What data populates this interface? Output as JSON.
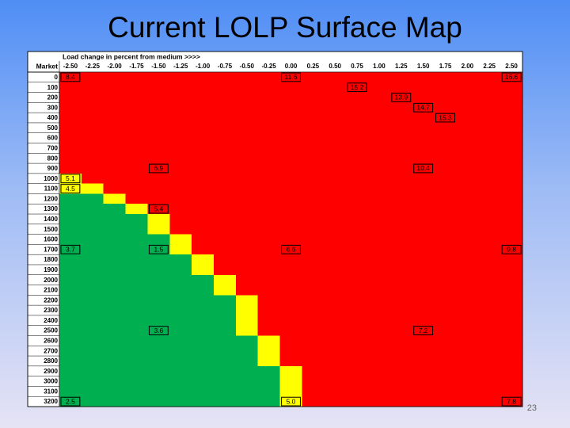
{
  "header": {
    "title": "Current LOLP Surface Map"
  },
  "footer": {
    "page": "23"
  },
  "table": {
    "caption": "Load change in percent from medium >>>>",
    "corner": "Market",
    "colors": {
      "red": "#ff0000",
      "yellow": "#ffff00",
      "green": "#00b050"
    },
    "columns": [
      "-2.50",
      "-2.25",
      "-2.00",
      "-1.75",
      "-1.50",
      "-1.25",
      "-1.00",
      "-0.75",
      "-0.50",
      "-0.25",
      "0.00",
      "0.25",
      "0.50",
      "0.75",
      "1.00",
      "1.25",
      "1.50",
      "1.75",
      "2.00",
      "2.25",
      "2.50"
    ],
    "rows": [
      {
        "label": "0",
        "yellow": [],
        "cells": [
          "8.4",
          null,
          null,
          null,
          null,
          null,
          null,
          null,
          null,
          null,
          "11.6",
          null,
          null,
          null,
          null,
          null,
          null,
          null,
          null,
          null,
          "16.6"
        ]
      },
      {
        "label": "100",
        "yellow": [],
        "cells": [
          null,
          null,
          null,
          null,
          null,
          null,
          null,
          null,
          null,
          null,
          null,
          null,
          null,
          "15.2",
          null,
          null,
          null,
          null,
          null,
          null,
          null
        ]
      },
      {
        "label": "200",
        "yellow": [],
        "cells": [
          null,
          null,
          null,
          null,
          null,
          null,
          null,
          null,
          null,
          null,
          null,
          null,
          null,
          null,
          null,
          "13.9",
          null,
          null,
          null,
          null,
          null
        ]
      },
      {
        "label": "300",
        "yellow": [],
        "cells": [
          null,
          null,
          null,
          null,
          null,
          null,
          null,
          null,
          null,
          null,
          null,
          null,
          null,
          null,
          null,
          null,
          "14.7",
          null,
          null,
          null,
          null
        ]
      },
      {
        "label": "400",
        "yellow": [],
        "cells": [
          null,
          null,
          null,
          null,
          null,
          null,
          null,
          null,
          null,
          null,
          null,
          null,
          null,
          null,
          null,
          null,
          null,
          "15.3",
          null,
          null,
          null
        ]
      },
      {
        "label": "500",
        "yellow": []
      },
      {
        "label": "600",
        "yellow": []
      },
      {
        "label": "700",
        "yellow": []
      },
      {
        "label": "800",
        "yellow": []
      },
      {
        "label": "900",
        "yellow": [],
        "cells": [
          null,
          null,
          null,
          null,
          "6.9",
          null,
          null,
          null,
          null,
          null,
          null,
          null,
          null,
          null,
          null,
          null,
          "10.4",
          null,
          null,
          null,
          null
        ]
      },
      {
        "label": "1000",
        "yellow": [
          0
        ],
        "cells": [
          "5.1",
          null,
          null,
          null,
          null,
          null,
          null,
          null,
          null,
          null,
          null,
          null,
          null,
          null,
          null,
          null,
          null,
          null,
          null,
          null,
          null
        ]
      },
      {
        "label": "1100",
        "yellow": [
          0,
          1
        ],
        "cells": [
          "4.5",
          null,
          null,
          null,
          null,
          null,
          null,
          null,
          null,
          null,
          null,
          null,
          null,
          null,
          null,
          null,
          null,
          null,
          null,
          null,
          null
        ]
      },
      {
        "label": "1200",
        "yellow": [
          2
        ]
      },
      {
        "label": "1300",
        "yellow": [
          3
        ],
        "cells": [
          null,
          null,
          null,
          null,
          "5.4",
          null,
          null,
          null,
          null,
          null,
          null,
          null,
          null,
          null,
          null,
          null,
          null,
          null,
          null,
          null,
          null
        ]
      },
      {
        "label": "1400",
        "yellow": [
          4
        ]
      },
      {
        "label": "1500",
        "yellow": [
          4
        ]
      },
      {
        "label": "1600",
        "yellow": [
          5
        ]
      },
      {
        "label": "1700",
        "yellow": [
          5
        ],
        "cells": [
          "3.7",
          null,
          null,
          null,
          "1.5",
          null,
          null,
          null,
          null,
          null,
          "6.6",
          null,
          null,
          null,
          null,
          null,
          null,
          null,
          null,
          null,
          "9.8"
        ]
      },
      {
        "label": "1800",
        "yellow": [
          6
        ]
      },
      {
        "label": "1900",
        "yellow": [
          6
        ]
      },
      {
        "label": "2000",
        "yellow": [
          7
        ]
      },
      {
        "label": "2100",
        "yellow": [
          7
        ]
      },
      {
        "label": "2200",
        "yellow": [
          8
        ]
      },
      {
        "label": "2300",
        "yellow": [
          8
        ]
      },
      {
        "label": "2400",
        "yellow": [
          8
        ]
      },
      {
        "label": "2500",
        "yellow": [
          8
        ],
        "cells": [
          null,
          null,
          null,
          null,
          "3.6",
          null,
          null,
          null,
          null,
          null,
          null,
          null,
          null,
          null,
          null,
          null,
          "7.2",
          null,
          null,
          null,
          null
        ]
      },
      {
        "label": "2600",
        "yellow": [
          9
        ]
      },
      {
        "label": "2700",
        "yellow": [
          9
        ]
      },
      {
        "label": "2800",
        "yellow": [
          9
        ]
      },
      {
        "label": "2900",
        "yellow": [
          10
        ]
      },
      {
        "label": "3000",
        "yellow": [
          10
        ]
      },
      {
        "label": "3100",
        "yellow": [
          10
        ]
      },
      {
        "label": "3200",
        "yellow": [
          10
        ],
        "cells": [
          "2.5",
          null,
          null,
          null,
          null,
          null,
          null,
          null,
          null,
          null,
          "5.0",
          null,
          null,
          null,
          null,
          null,
          null,
          null,
          null,
          null,
          "7.8"
        ]
      }
    ]
  }
}
